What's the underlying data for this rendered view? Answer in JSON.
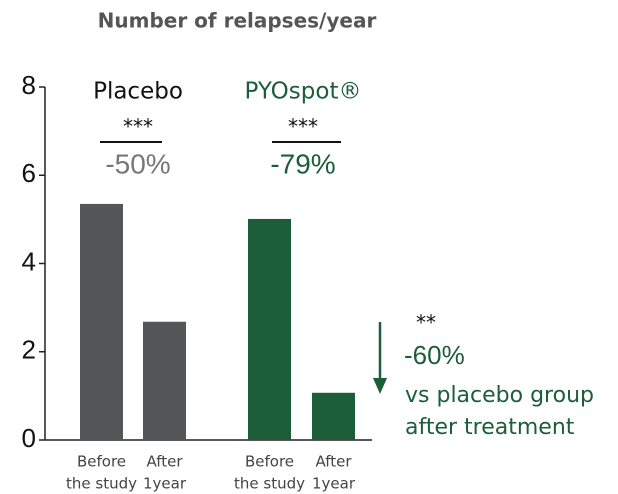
{
  "chart_data": {
    "type": "bar",
    "title": "Number of relapses/year",
    "ylim": [
      0,
      8
    ],
    "yticks": [
      0,
      2,
      4,
      6,
      8
    ],
    "categories": [
      [
        "Before",
        "the study"
      ],
      [
        "After",
        "1year"
      ]
    ],
    "groups": [
      {
        "name": "Placebo",
        "color": "#555657",
        "label_color": "#111111",
        "change_color": "#777777",
        "values": [
          5.35,
          2.68
        ],
        "significance": "***",
        "change": "-50%"
      },
      {
        "name": "PYOspot®",
        "color": "#1d5e3a",
        "label_color": "#1d5e3a",
        "change_color": "#1d5e3a",
        "values": [
          5.01,
          1.07
        ],
        "significance": "***",
        "change": "-79%"
      }
    ],
    "comparison": {
      "significance": "**",
      "change": "-60%",
      "text": [
        "vs placebo group",
        "after treatment"
      ],
      "color": "#1d5e3a"
    }
  }
}
